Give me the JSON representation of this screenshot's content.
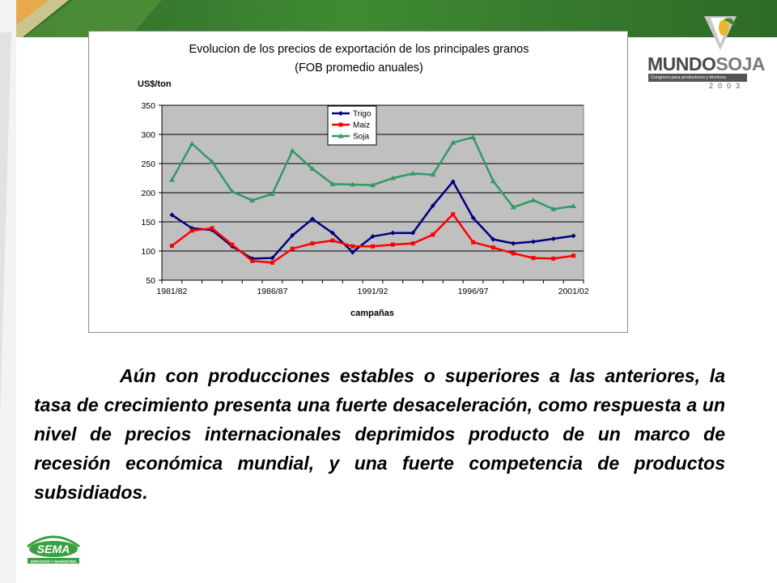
{
  "brand": {
    "name_part1": "MUNDO",
    "name_part2": "SOJA",
    "tagline": "Congreso para productores y técnicos",
    "year": "2003"
  },
  "footer": {
    "logo_text": "SEMA",
    "logo_sub": "SERVICIOS Y MARKETING"
  },
  "paragraph": "Aún con producciones estables o superiores a las anteriores, la tasa de crecimiento presenta una fuerte desaceleración, como respuesta a un nivel de precios internacionales deprimidos producto de un marco de recesión económica mundial, y una fuerte competencia de productos subsidiados.",
  "colors": {
    "trigo": "#000080",
    "maiz": "#ff0000",
    "soja": "#339966",
    "plot_bg": "#c0c0c0"
  },
  "chart_data": {
    "type": "line",
    "title": "Evolucion de los precios de exportación de los principales granos",
    "subtitle": "(FOB promedio anuales)",
    "ylabel": "US$/ton",
    "xlabel": "campañas",
    "ylim": [
      50,
      350
    ],
    "yticks": [
      50,
      100,
      150,
      200,
      250,
      300,
      350
    ],
    "x_tick_labels": [
      "1981/82",
      "1986/87",
      "1991/92",
      "1996/97",
      "2001/02"
    ],
    "x_tick_indices": [
      0,
      5,
      10,
      15,
      20
    ],
    "points_count": 21,
    "grid": "horizontal",
    "legend_position": "top-center",
    "series": [
      {
        "name": "Trigo",
        "values": [
          162,
          139,
          136,
          108,
          87,
          88,
          127,
          155,
          131,
          98,
          125,
          131,
          131,
          178,
          219,
          157,
          120,
          113,
          116,
          121,
          126
        ]
      },
      {
        "name": "Maiz",
        "values": [
          109,
          135,
          139,
          111,
          83,
          80,
          104,
          113,
          118,
          108,
          108,
          111,
          113,
          128,
          163,
          115,
          106,
          96,
          88,
          87,
          92
        ]
      },
      {
        "name": "Soja",
        "values": [
          222,
          284,
          253,
          202,
          187,
          198,
          272,
          241,
          215,
          214,
          213,
          225,
          233,
          231,
          286,
          295,
          220,
          175,
          187,
          172,
          177
        ]
      }
    ]
  }
}
